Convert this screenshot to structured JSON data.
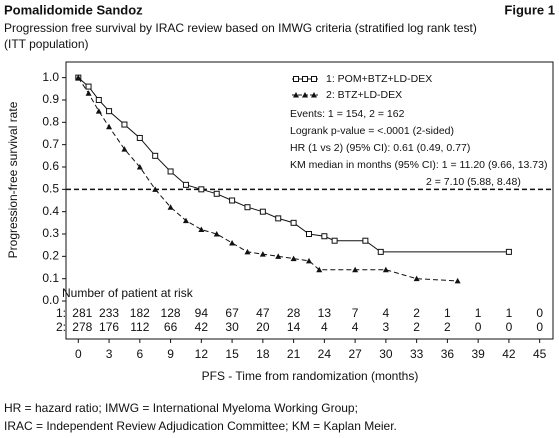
{
  "chart_data": {
    "type": "line",
    "title": "Pomalidomide Sandoz",
    "figure_label": "Figure 1",
    "subtitle": [
      "Progression free survival by IRAC review based on IMWG criteria (stratified log rank test)",
      "(ITT population)"
    ],
    "x_label": "PFS - Time from randomization (months)",
    "y_label": "Progression-free survival rate",
    "xlim": [
      -1.2,
      46.3
    ],
    "ylim": [
      -0.17,
      1.07
    ],
    "xticks": [
      0,
      3,
      6,
      9,
      12,
      15,
      18,
      21,
      24,
      27,
      30,
      33,
      36,
      39,
      42,
      45
    ],
    "yticks": [
      {
        "value": 0,
        "label": "0.0"
      },
      0.1,
      0.2,
      0.3,
      0.4,
      0.5,
      0.6,
      0.7,
      0.8,
      0.9,
      {
        "value": 1,
        "label": "1.0"
      }
    ],
    "reference_line": 0.5,
    "series": [
      {
        "name": "1:  POM+BTZ+LD-DEX",
        "color": "#111111",
        "dash": false,
        "marker": "square",
        "x": [
          0,
          1,
          2,
          3,
          4.5,
          6,
          7.5,
          9,
          10.5,
          12,
          13.5,
          15,
          16.5,
          18,
          19.5,
          21,
          22.5,
          24,
          25,
          28,
          29.5,
          42
        ],
        "values": [
          1.0,
          0.96,
          0.9,
          0.85,
          0.79,
          0.73,
          0.65,
          0.58,
          0.52,
          0.5,
          0.48,
          0.45,
          0.42,
          0.4,
          0.37,
          0.35,
          0.3,
          0.29,
          0.27,
          0.27,
          0.22,
          0.22
        ]
      },
      {
        "name": "2:  BTZ+LD-DEX",
        "color": "#111111",
        "dash": true,
        "marker": "triangle",
        "x": [
          0,
          1,
          2,
          3,
          4.5,
          6,
          7.5,
          9,
          10.5,
          12,
          13.5,
          15,
          16.5,
          18,
          19.5,
          21,
          22.5,
          23.5,
          27,
          30,
          33,
          37
        ],
        "values": [
          1.0,
          0.93,
          0.85,
          0.78,
          0.68,
          0.6,
          0.5,
          0.42,
          0.36,
          0.32,
          0.3,
          0.26,
          0.22,
          0.21,
          0.2,
          0.19,
          0.18,
          0.14,
          0.14,
          0.14,
          0.1,
          0.09
        ]
      }
    ],
    "annotations": [
      "Events: 1 = 154, 2 = 162",
      "Logrank p-value = <.0001 (2-sided)",
      "HR (1 vs 2) (95% CI): 0.61 (0.49, 0.77)",
      "KM median in months (95% CI): 1 = 11.20 (9.66, 13.73)",
      "2 = 7.10 (5.88, 8.48)"
    ],
    "risk_table": {
      "title": "Number of patient at risk",
      "rows": [
        {
          "label": "1:",
          "values": [
            281,
            233,
            182,
            128,
            94,
            67,
            47,
            28,
            13,
            7,
            4,
            2,
            1,
            1,
            1,
            0
          ]
        },
        {
          "label": "2:",
          "values": [
            278,
            176,
            112,
            66,
            42,
            30,
            20,
            14,
            4,
            4,
            3,
            2,
            2,
            0,
            0,
            0
          ]
        }
      ]
    },
    "footnotes": [
      "HR = hazard ratio; IMWG = International Myeloma Working Group;",
      "IRAC = Independent Review Adjudication Committee; KM = Kaplan Meier."
    ]
  }
}
